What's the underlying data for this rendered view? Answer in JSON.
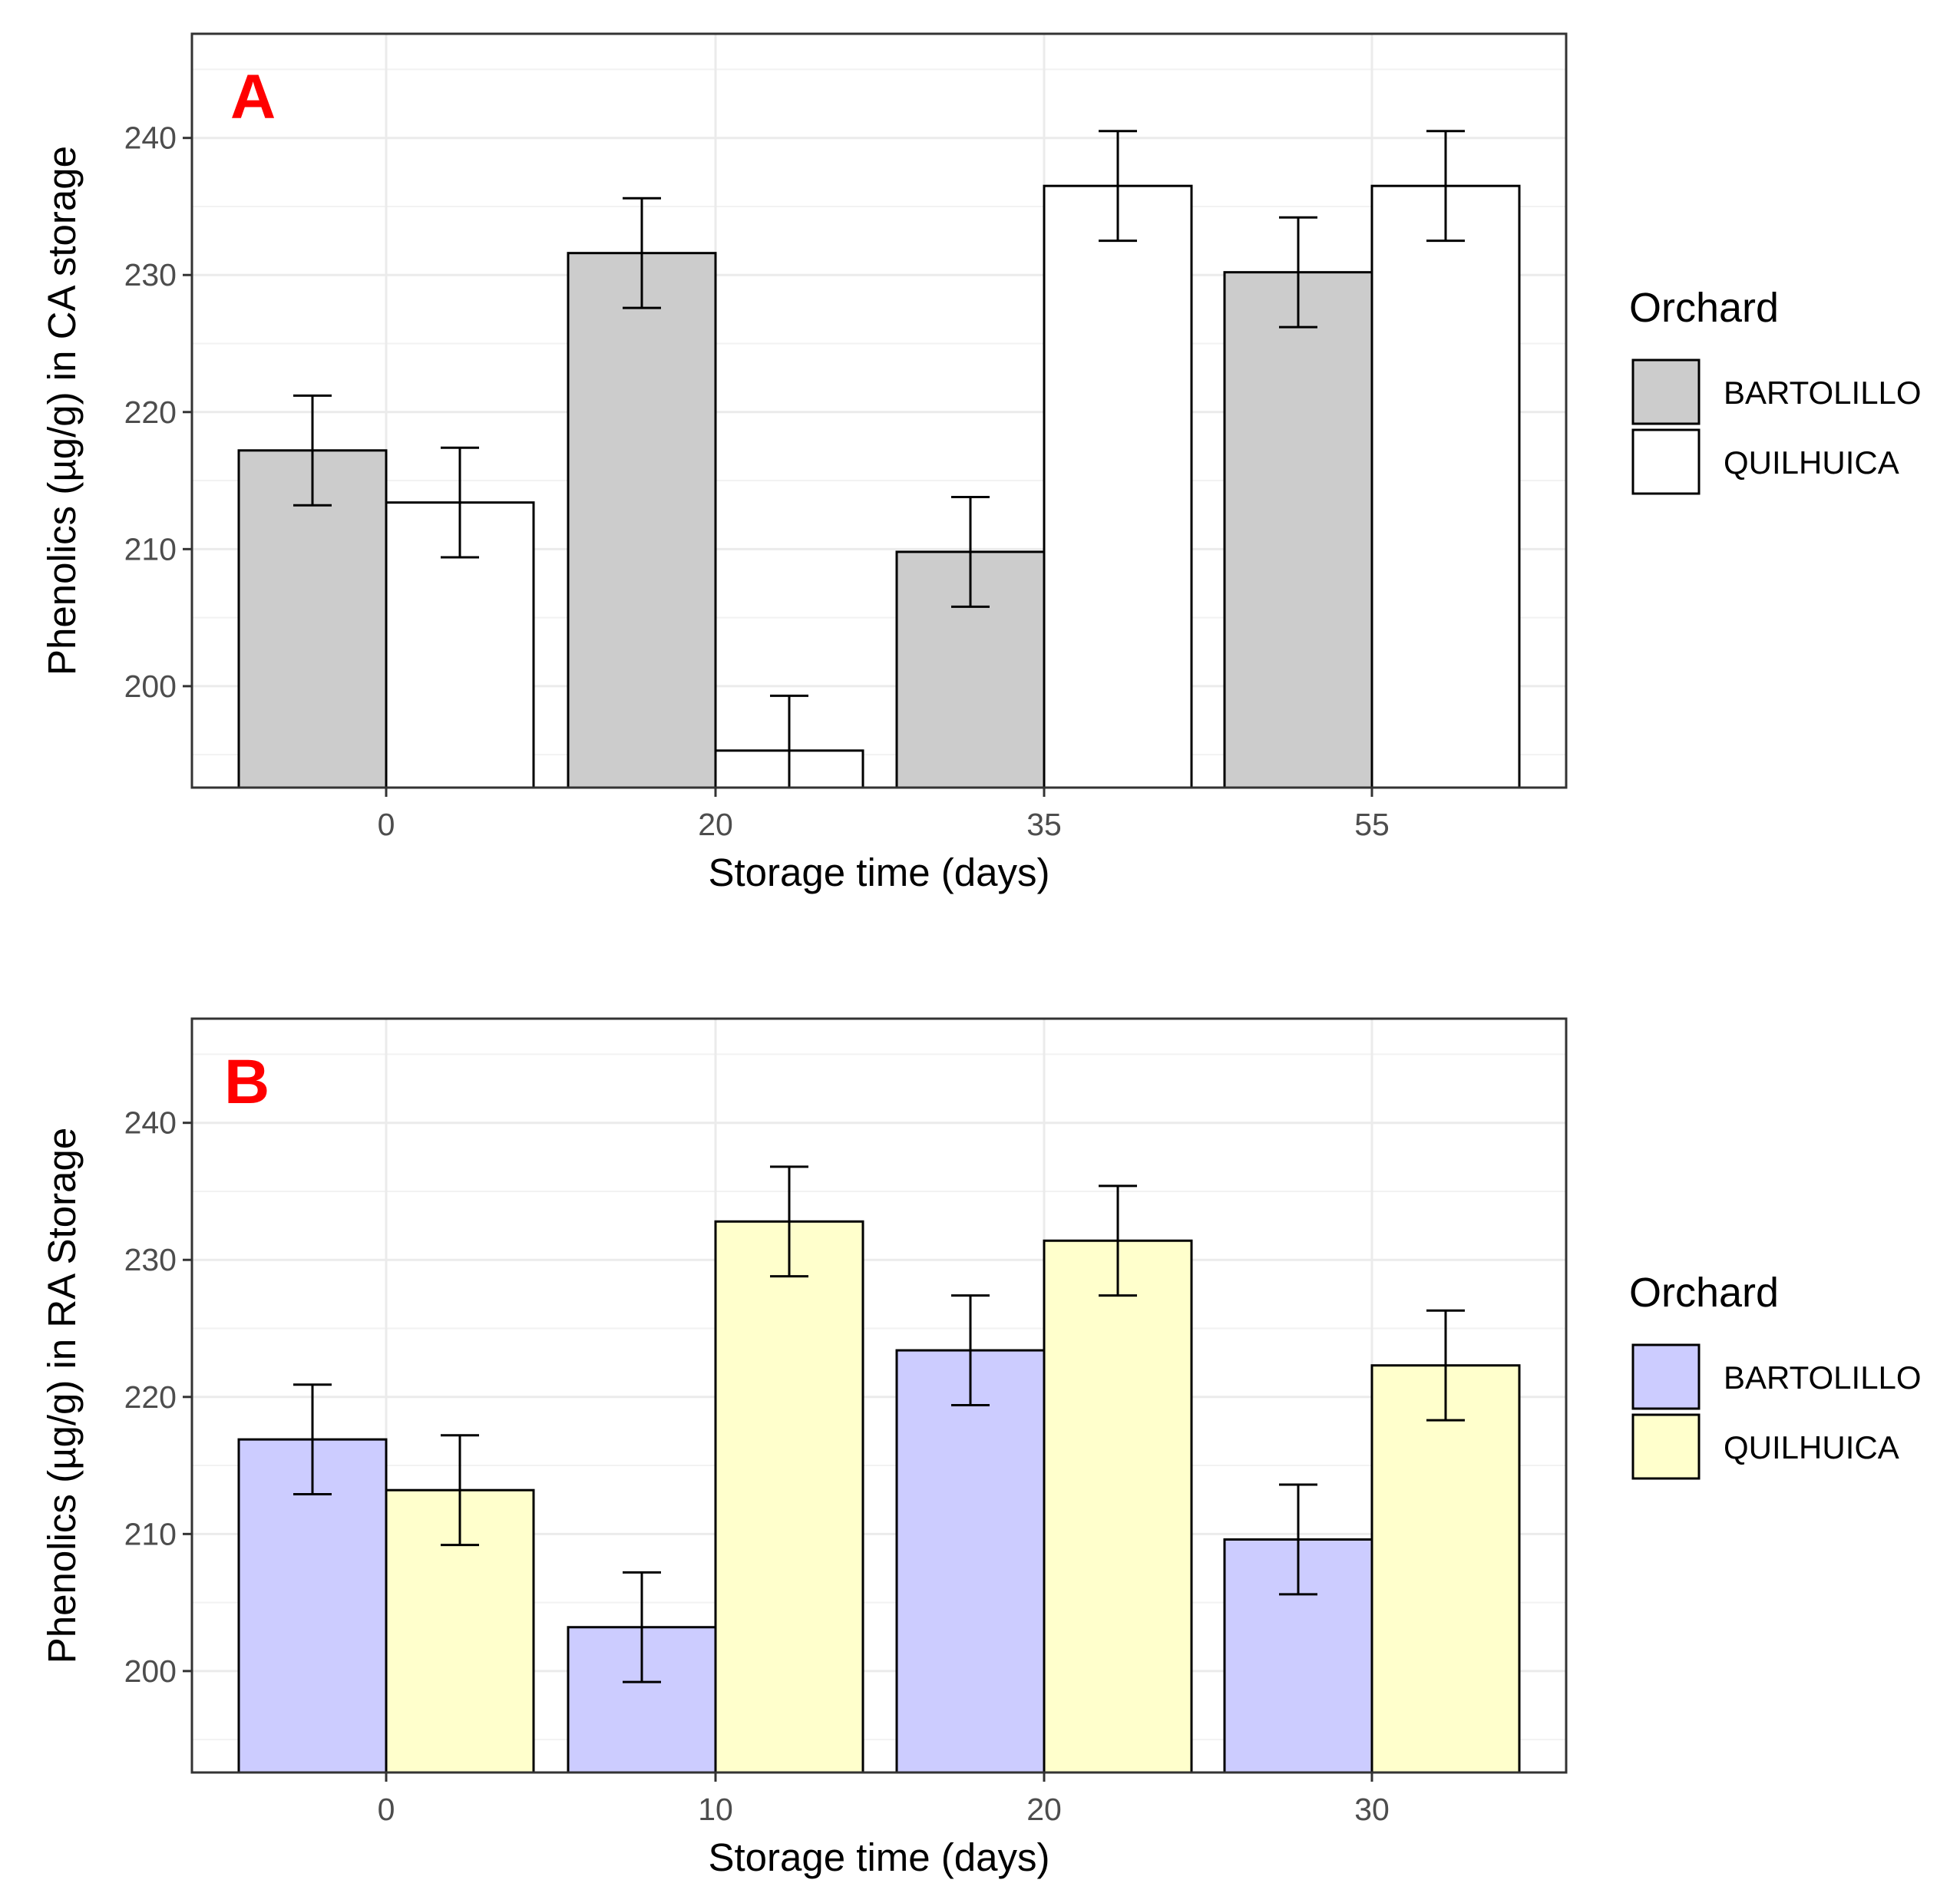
{
  "chart_data": [
    {
      "type": "bar",
      "panel_label": "A",
      "panel_label_color": "#ff0000",
      "categories": [
        "0",
        "20",
        "35",
        "55"
      ],
      "series": [
        {
          "name": "BARTOLILLO",
          "values": [
            217.2,
            231.6,
            209.8,
            230.2
          ],
          "errors": [
            4.0,
            4.0,
            4.0,
            4.0
          ],
          "color": "#cccccc"
        },
        {
          "name": "QUILHUICA",
          "values": [
            213.4,
            195.3,
            236.5,
            236.5
          ],
          "errors": [
            4.0,
            4.0,
            4.0,
            4.0
          ],
          "color": "#ffffff"
        }
      ],
      "xlabel": "Storage time (days)",
      "ylabel": "Phenolics (µg/g) in CA storage",
      "yticks": [
        200,
        210,
        220,
        230,
        240
      ],
      "ylim": [
        192.6,
        247.6
      ],
      "legend_title": "Orchard",
      "grid": true
    },
    {
      "type": "bar",
      "panel_label": "B",
      "panel_label_color": "#ff0000",
      "categories": [
        "0",
        "10",
        "20",
        "30"
      ],
      "series": [
        {
          "name": "BARTOLILLO",
          "values": [
            216.9,
            203.2,
            223.4,
            209.6
          ],
          "errors": [
            4.0,
            4.0,
            4.0,
            4.0
          ],
          "color": "#ccccff"
        },
        {
          "name": "QUILHUICA",
          "values": [
            213.2,
            232.8,
            231.4,
            222.3
          ],
          "errors": [
            4.0,
            4.0,
            4.0,
            4.0
          ],
          "color": "#ffffcc"
        }
      ],
      "xlabel": "Storage time (days)",
      "ylabel": "Phenolics (µg/g) in RA Storage",
      "yticks": [
        200,
        210,
        220,
        230,
        240
      ],
      "ylim": [
        192.6,
        247.6
      ],
      "legend_title": "Orchard",
      "grid": true
    }
  ]
}
